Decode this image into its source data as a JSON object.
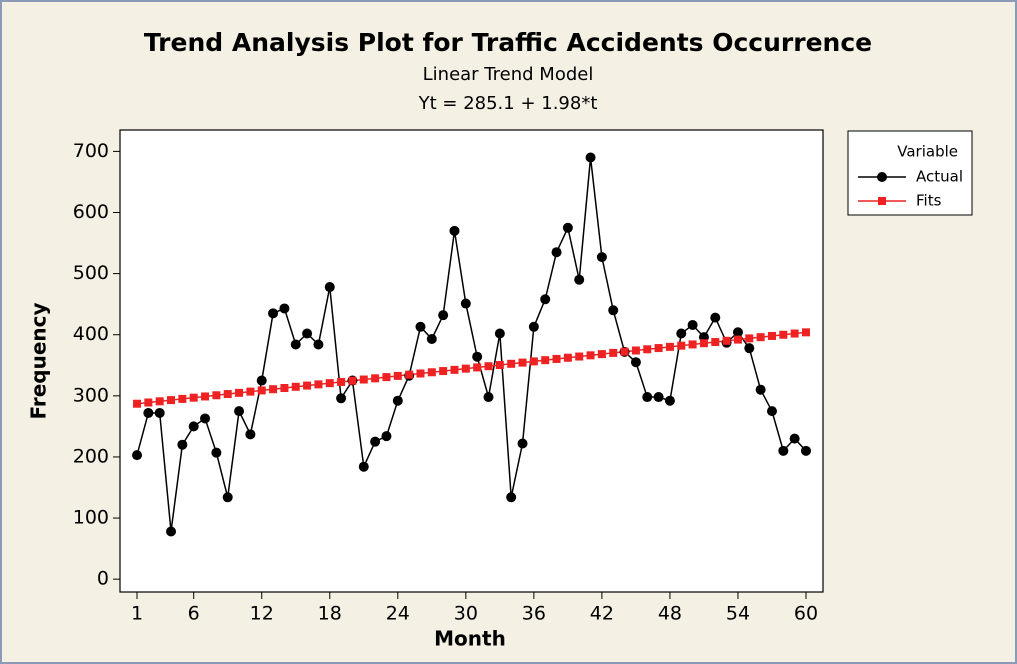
{
  "chart_data": {
    "type": "line",
    "title": "Trend Analysis Plot for Traffic Accidents Occurrence",
    "subtitle": [
      "Linear Trend Model",
      "Yt = 285.1 + 1.98*t"
    ],
    "xlabel": "Month",
    "ylabel": "Frequency",
    "legend_title": "Variable",
    "legend": "outside-right",
    "x": [
      1,
      2,
      3,
      4,
      5,
      6,
      7,
      8,
      9,
      10,
      11,
      12,
      13,
      14,
      15,
      16,
      17,
      18,
      19,
      20,
      21,
      22,
      23,
      24,
      25,
      26,
      27,
      28,
      29,
      30,
      31,
      32,
      33,
      34,
      35,
      36,
      37,
      38,
      39,
      40,
      41,
      42,
      43,
      44,
      45,
      46,
      47,
      48,
      49,
      50,
      51,
      52,
      53,
      54,
      55,
      56,
      57,
      58,
      59,
      60
    ],
    "series": [
      {
        "name": "Actual",
        "color": "#000000",
        "marker": "circle",
        "values": [
          203,
          272,
          272,
          78,
          220,
          250,
          263,
          207,
          134,
          275,
          237,
          325,
          435,
          443,
          384,
          402,
          384,
          478,
          296,
          325,
          184,
          225,
          234,
          292,
          333,
          413,
          393,
          432,
          570,
          451,
          364,
          298,
          402,
          134,
          222,
          413,
          458,
          535,
          575,
          490,
          690,
          527,
          440,
          372,
          355,
          298,
          298,
          292,
          402,
          416,
          396,
          428,
          387,
          404,
          378,
          310,
          275,
          210,
          230,
          210
        ]
      },
      {
        "name": "Fits",
        "color": "#ee2222",
        "marker": "square",
        "values": [
          287.08,
          289.06,
          291.04,
          293.02,
          295.0,
          296.98,
          298.96,
          300.94,
          302.92,
          304.9,
          306.88,
          308.86,
          310.84,
          312.82,
          314.8,
          316.78,
          318.76,
          320.74,
          322.72,
          324.7,
          326.68,
          328.66,
          330.64,
          332.62,
          334.6,
          336.58,
          338.56,
          340.54,
          342.52,
          344.5,
          346.48,
          348.46,
          350.44,
          352.42,
          354.4,
          356.38,
          358.36,
          360.34,
          362.32,
          364.3,
          366.28,
          368.26,
          370.24,
          372.22,
          374.2,
          376.18,
          378.16,
          380.14,
          382.12,
          384.1,
          386.08,
          388.06,
          390.04,
          392.02,
          394.0,
          395.98,
          397.96,
          399.94,
          401.92,
          403.9
        ]
      }
    ],
    "xlim": [
      -0.5,
      61.5
    ],
    "xticks": [
      1,
      6,
      12,
      18,
      24,
      30,
      36,
      42,
      48,
      54,
      60
    ],
    "ylim": [
      -21,
      735
    ],
    "yticks": [
      0,
      100,
      200,
      300,
      400,
      500,
      600,
      700
    ],
    "grid": false
  }
}
